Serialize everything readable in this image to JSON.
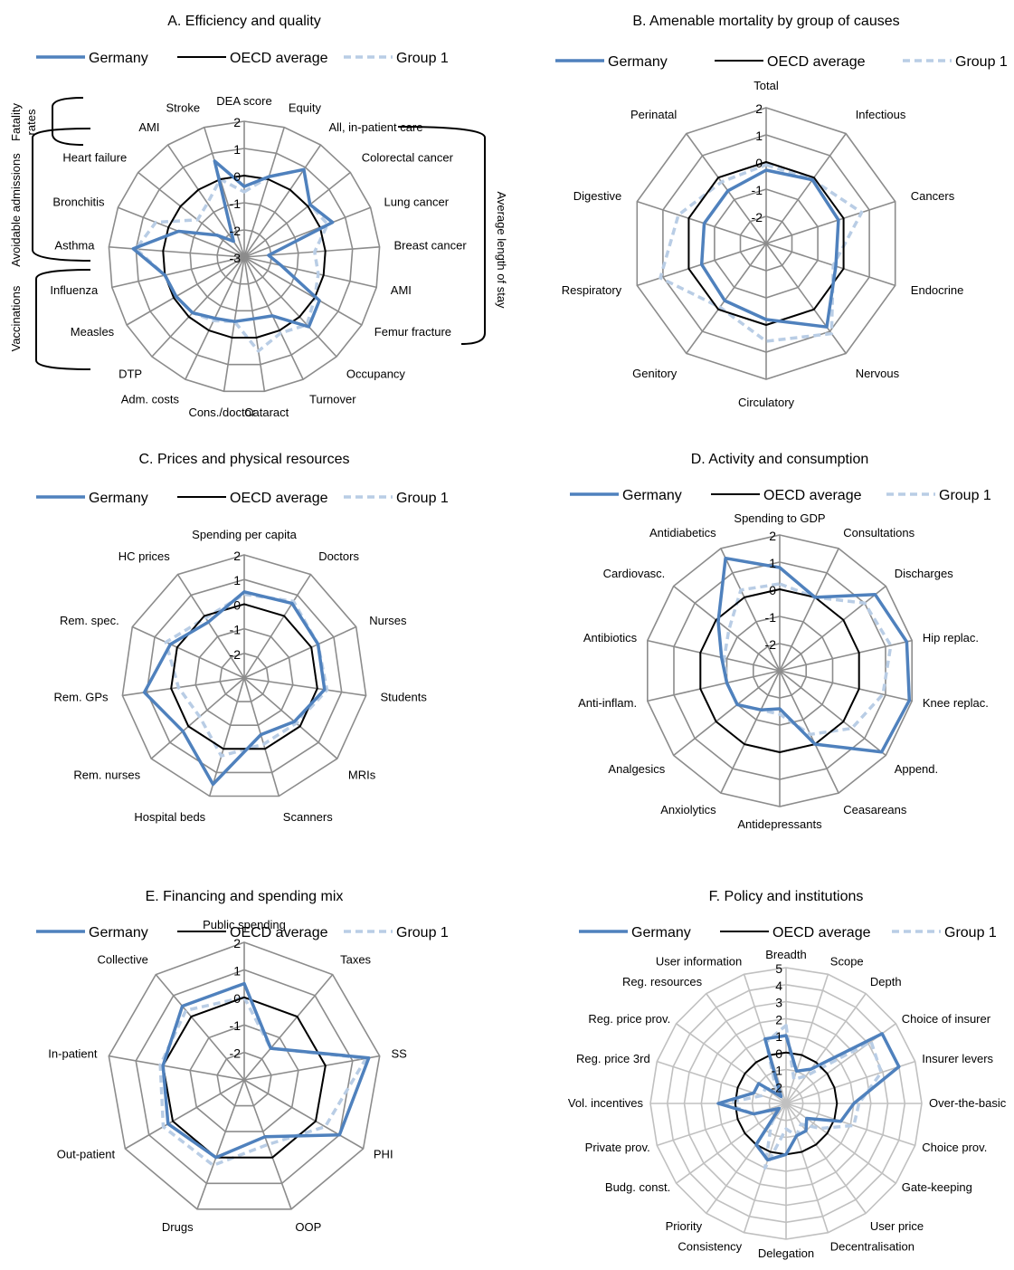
{
  "colors": {
    "germany": "#4f81bd",
    "oecd": "#000000",
    "group": "#b9cde5",
    "grid": "#8c8c8c",
    "grid_light": "#c0c0c0"
  },
  "chart_data": [
    {
      "type": "radar",
      "title": "A. Efficiency and quality",
      "legend": [
        "Germany",
        "OECD average",
        "Group 1"
      ],
      "rmin": -3,
      "rmax": 2,
      "ticks": [
        "2",
        "1",
        "0",
        "-1",
        "-2",
        "-3"
      ],
      "categories": [
        "DEA score",
        "Equity",
        "All, in-patient care",
        "Colorectal cancer",
        "Lung cancer",
        "Breast cancer",
        "AMI",
        "Femur fracture",
        "Occupancy",
        "Turnover",
        "Cataract",
        "Cons./doctor",
        "Adm. costs",
        "DTP",
        "Measles",
        "Influenza",
        "Asthma",
        "Bronchitis",
        "Heart failure",
        "AMI",
        "Stroke"
      ],
      "series": [
        {
          "name": "Germany",
          "values": [
            -0.4,
            0.1,
            0.9,
            0.1,
            0.5,
            -2.1,
            -1.6,
            0.2,
            0.5,
            -0.6,
            -0.7,
            -0.6,
            -0.5,
            -0.2,
            -0.1,
            0.0,
            1.1,
            -0.4,
            -1.7,
            -2.3,
            0.7
          ]
        },
        {
          "name": "OECD average",
          "values": [
            0,
            0,
            0,
            0,
            0,
            0,
            0,
            0,
            0,
            0,
            0,
            0,
            0,
            0,
            0,
            0,
            0,
            0,
            0,
            0,
            0
          ]
        },
        {
          "name": "Group 1",
          "values": [
            -0.6,
            0.1,
            0.9,
            0.1,
            0.3,
            -0.4,
            -0.2,
            0.0,
            0.4,
            0.1,
            0.5,
            -0.6,
            -0.4,
            -0.2,
            -0.1,
            0.0,
            1.0,
            0.5,
            -0.8,
            -0.6,
            0.0
          ]
        }
      ],
      "side_groups": [
        {
          "label": "Fatality rates",
          "side": "left"
        },
        {
          "label": "Avoidable admissions",
          "side": "left"
        },
        {
          "label": "Vaccinations",
          "side": "left"
        },
        {
          "label": "Average length of stay",
          "side": "right"
        }
      ]
    },
    {
      "type": "radar",
      "title": "B. Amenable mortality by group of causes",
      "legend": [
        "Germany",
        "OECD average",
        "Group 1"
      ],
      "rmin": -3,
      "rmax": 2,
      "ticks": [
        "2",
        "1",
        "0",
        "-1",
        "-2"
      ],
      "categories": [
        "Total",
        "Infectious",
        "Cancers",
        "Endocrine",
        "Nervous",
        "Circulatory",
        "Genitory",
        "Respiratory",
        "Digestive",
        "Perinatal"
      ],
      "series": [
        {
          "name": "Germany",
          "values": [
            -0.3,
            -0.1,
            -0.2,
            -0.3,
            0.8,
            -0.2,
            -0.4,
            -0.5,
            -0.6,
            -0.6
          ]
        },
        {
          "name": "OECD average",
          "values": [
            0,
            0,
            0,
            0,
            0,
            0,
            0,
            0,
            0,
            0
          ]
        },
        {
          "name": "Group 1",
          "values": [
            -0.1,
            -0.1,
            0.7,
            -0.4,
            1.1,
            0.6,
            -0.1,
            1.1,
            0.4,
            -0.2
          ]
        }
      ]
    },
    {
      "type": "radar",
      "title": "C. Prices and physical resources",
      "legend": [
        "Germany",
        "OECD average",
        "Group 1"
      ],
      "rmin": -3,
      "rmax": 2,
      "ticks": [
        "2",
        "1",
        "0",
        "-1",
        "-2"
      ],
      "categories": [
        "Spending per capita",
        "Doctors",
        "Nurses",
        "Students",
        "MRIs",
        "Scanners",
        "Hospital beds",
        "Rem. nurses",
        "Rem. GPs",
        "Rem. spec.",
        "HC prices"
      ],
      "series": [
        {
          "name": "Germany",
          "values": [
            0.5,
            0.6,
            0.3,
            0.3,
            -0.3,
            -0.6,
            1.5,
            0.3,
            1.1,
            0.3,
            -0.3
          ]
        },
        {
          "name": "OECD average",
          "values": [
            0,
            0,
            0,
            0,
            0,
            0,
            0,
            0,
            0,
            0,
            0
          ]
        },
        {
          "name": "Group 1",
          "values": [
            0.4,
            0.7,
            0.3,
            0.4,
            -0.2,
            -0.2,
            0.3,
            -0.6,
            -0.3,
            0.5,
            -0.1
          ]
        }
      ]
    },
    {
      "type": "radar",
      "title": "D. Activity and consumption",
      "legend": [
        "Germany",
        "OECD average",
        "Group 1"
      ],
      "rmin": -3,
      "rmax": 2,
      "ticks": [
        "2",
        "1",
        "0",
        "-1",
        "-2"
      ],
      "categories": [
        "Spending to GDP",
        "Consultations",
        "Discharges",
        "Hip replac.",
        "Knee replac.",
        "Append.",
        "Ceasareans",
        "Antidepressants",
        "Anxiolytics",
        "Analgesics",
        "Anti-inflam.",
        "Antibiotics",
        "Cardiovasc.",
        "Antidiabetics"
      ],
      "series": [
        {
          "name": "Germany",
          "values": [
            0.8,
            0.0,
            1.5,
            1.8,
            1.9,
            1.8,
            0.0,
            -1.6,
            -1.4,
            -1.0,
            -1.0,
            -0.8,
            -0.1,
            1.6
          ]
        },
        {
          "name": "OECD average",
          "values": [
            0,
            0,
            0,
            0,
            0,
            0,
            0,
            0,
            0,
            0,
            0,
            0,
            0,
            0
          ]
        },
        {
          "name": "Group 1",
          "values": [
            0.2,
            0.0,
            1.0,
            1.2,
            0.9,
            0.4,
            -0.4,
            -1.4,
            -1.4,
            -1.0,
            -1.0,
            -0.9,
            -0.6,
            0.3
          ]
        }
      ]
    },
    {
      "type": "radar",
      "title": "E. Financing and spending mix",
      "legend": [
        "Germany",
        "OECD average",
        "Group 1"
      ],
      "rmin": -3,
      "rmax": 2,
      "ticks": [
        "2",
        "1",
        "0",
        "-1",
        "-2"
      ],
      "categories": [
        "Public spending",
        "Taxes",
        "SS",
        "PHI",
        "OOP",
        "Drugs",
        "Out-patient",
        "In-patient",
        "Collective"
      ],
      "series": [
        {
          "name": "Germany",
          "values": [
            0.5,
            -1.5,
            1.6,
            1.0,
            -0.8,
            0.0,
            0.2,
            0.0,
            0.5
          ]
        },
        {
          "name": "OECD average",
          "values": [
            0,
            0,
            0,
            0,
            0,
            0,
            0,
            0,
            0
          ]
        },
        {
          "name": "Group 1",
          "values": [
            0.0,
            -1.5,
            1.5,
            0.4,
            -0.5,
            0.3,
            0.4,
            0.1,
            0.3
          ]
        }
      ]
    },
    {
      "type": "radar",
      "title": "F. Policy and institutions",
      "legend": [
        "Germany",
        "OECD average",
        "Group 1"
      ],
      "rmin": -3,
      "rmax": 5,
      "ticks": [
        "5",
        "4",
        "3",
        "2",
        "1",
        "0",
        "-1",
        "-2"
      ],
      "categories": [
        "Breadth",
        "Scope",
        "Depth",
        "Choice of insurer",
        "Insurer levers",
        "Over-the-basic",
        "Choice prov.",
        "Gate-keeping",
        "User price",
        "Decentralisation",
        "Delegation",
        "Consistency",
        "Priority",
        "Budg. const.",
        "Private prov.",
        "Vol. incentives",
        "Reg. price 3rd",
        "Reg. price prov.",
        "Reg. resources",
        "User information"
      ],
      "series": [
        {
          "name": "Germany",
          "values": [
            1.0,
            -1.0,
            -0.5,
            4.0,
            4.0,
            1.0,
            0.4,
            -1.5,
            -1.0,
            -1.0,
            0.0,
            0.5,
            0.0,
            -2.5,
            -1.0,
            1.0,
            -1.0,
            -1.0,
            -2.5,
            1.0
          ]
        },
        {
          "name": "OECD average",
          "values": [
            0,
            0,
            0,
            0,
            0,
            0,
            0,
            0,
            0,
            0,
            0,
            0,
            0,
            0,
            0,
            0,
            0,
            0,
            0,
            0
          ]
        },
        {
          "name": "Group 1",
          "values": [
            1.6,
            -1.5,
            -1.0,
            3.2,
            2.9,
            1.3,
            1.2,
            -0.5,
            -1.5,
            -1.0,
            -1.5,
            1.0,
            -1.5,
            -2.5,
            -1.0,
            0.6,
            -1.5,
            -1.5,
            -2.0,
            0.8
          ]
        }
      ]
    }
  ]
}
